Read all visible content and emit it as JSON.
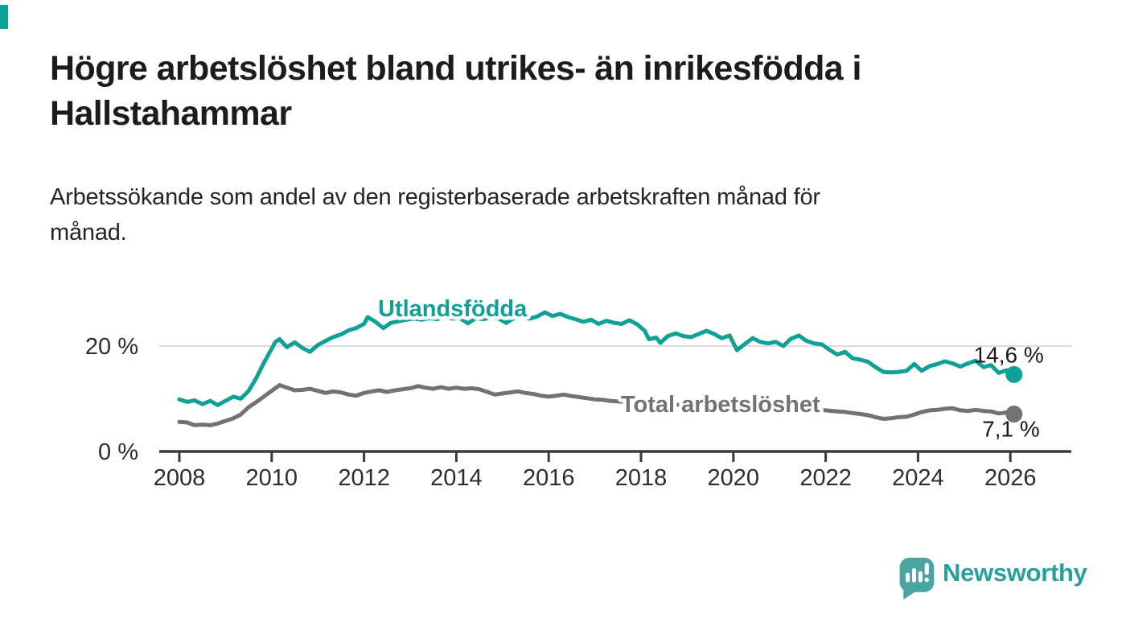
{
  "accent_color": "#0FA196",
  "header": {
    "title": "Högre arbetslöshet bland utrikes- än inrikesfödda i Hallstahammar",
    "subtitle": "Arbetssökande som andel av den registerbaserade arbetskraften månad för månad."
  },
  "chart_data": {
    "type": "line",
    "title": "Högre arbetslöshet bland utrikes- än inrikesfödda i Hallstahammar",
    "subtitle": "Arbetssökande som andel av den registerbaserade arbetskraften månad för månad.",
    "x_axis": {
      "unit": "year",
      "range": [
        2007.55,
        2027.3
      ],
      "tick_values": [
        2008,
        2010,
        2012,
        2014,
        2016,
        2018,
        2020,
        2022,
        2024,
        2026
      ],
      "tick_labels": [
        "2008",
        "2010",
        "2012",
        "2014",
        "2016",
        "2018",
        "2020",
        "2022",
        "2024",
        "2026"
      ]
    },
    "y_axis": {
      "unit": "%",
      "range": [
        0,
        28
      ],
      "ticks": [
        {
          "value": 0,
          "label": "0 %"
        },
        {
          "value": 20,
          "label": "20 %"
        }
      ],
      "gridline_at": 20
    },
    "legend_position": "inline-labels",
    "grid": "single-horizontal",
    "series": [
      {
        "name": "Utlandsfödda",
        "color": "#0FA196",
        "end_label": "14,6 %",
        "end_value": 14.6,
        "points": [
          [
            2008.0,
            9.9
          ],
          [
            2008.17,
            9.4
          ],
          [
            2008.33,
            9.7
          ],
          [
            2008.5,
            9.0
          ],
          [
            2008.67,
            9.6
          ],
          [
            2008.83,
            8.8
          ],
          [
            2009.0,
            9.6
          ],
          [
            2009.17,
            10.4
          ],
          [
            2009.33,
            10.0
          ],
          [
            2009.5,
            11.5
          ],
          [
            2009.67,
            14.0
          ],
          [
            2009.83,
            16.8
          ],
          [
            2010.0,
            19.5
          ],
          [
            2010.08,
            20.8
          ],
          [
            2010.17,
            21.3
          ],
          [
            2010.33,
            19.8
          ],
          [
            2010.5,
            20.7
          ],
          [
            2010.67,
            19.6
          ],
          [
            2010.83,
            18.9
          ],
          [
            2011.0,
            20.2
          ],
          [
            2011.17,
            21.0
          ],
          [
            2011.33,
            21.7
          ],
          [
            2011.5,
            22.2
          ],
          [
            2011.67,
            23.0
          ],
          [
            2011.83,
            23.4
          ],
          [
            2012.0,
            24.2
          ],
          [
            2012.08,
            25.5
          ],
          [
            2012.25,
            24.6
          ],
          [
            2012.42,
            23.4
          ],
          [
            2012.58,
            24.4
          ],
          [
            2012.75,
            24.7
          ],
          [
            2012.92,
            25.0
          ],
          [
            2013.08,
            25.2
          ],
          [
            2013.25,
            25.0
          ],
          [
            2013.42,
            25.3
          ],
          [
            2013.58,
            25.1
          ],
          [
            2013.75,
            25.4
          ],
          [
            2013.92,
            25.2
          ],
          [
            2014.08,
            25.3
          ],
          [
            2014.25,
            24.3
          ],
          [
            2014.42,
            25.3
          ],
          [
            2014.58,
            25.1
          ],
          [
            2014.75,
            25.4
          ],
          [
            2014.92,
            25.2
          ],
          [
            2015.08,
            24.4
          ],
          [
            2015.25,
            25.3
          ],
          [
            2015.42,
            25.5
          ],
          [
            2015.58,
            25.2
          ],
          [
            2015.75,
            25.6
          ],
          [
            2015.92,
            26.4
          ],
          [
            2016.08,
            25.7
          ],
          [
            2016.25,
            26.1
          ],
          [
            2016.42,
            25.5
          ],
          [
            2016.58,
            25.1
          ],
          [
            2016.75,
            24.6
          ],
          [
            2016.92,
            25.0
          ],
          [
            2017.08,
            24.2
          ],
          [
            2017.25,
            24.8
          ],
          [
            2017.42,
            24.4
          ],
          [
            2017.58,
            24.2
          ],
          [
            2017.75,
            24.9
          ],
          [
            2017.92,
            24.1
          ],
          [
            2018.08,
            22.9
          ],
          [
            2018.17,
            21.3
          ],
          [
            2018.33,
            21.6
          ],
          [
            2018.42,
            20.6
          ],
          [
            2018.58,
            21.9
          ],
          [
            2018.75,
            22.4
          ],
          [
            2018.92,
            21.9
          ],
          [
            2019.08,
            21.7
          ],
          [
            2019.25,
            22.3
          ],
          [
            2019.42,
            22.9
          ],
          [
            2019.58,
            22.3
          ],
          [
            2019.75,
            21.5
          ],
          [
            2019.92,
            22.0
          ],
          [
            2020.08,
            19.2
          ],
          [
            2020.25,
            20.4
          ],
          [
            2020.42,
            21.5
          ],
          [
            2020.58,
            20.8
          ],
          [
            2020.75,
            20.5
          ],
          [
            2020.92,
            20.8
          ],
          [
            2021.08,
            20.0
          ],
          [
            2021.25,
            21.4
          ],
          [
            2021.42,
            22.0
          ],
          [
            2021.58,
            21.0
          ],
          [
            2021.75,
            20.5
          ],
          [
            2021.92,
            20.3
          ],
          [
            2022.08,
            19.3
          ],
          [
            2022.25,
            18.4
          ],
          [
            2022.42,
            18.9
          ],
          [
            2022.58,
            17.7
          ],
          [
            2022.75,
            17.4
          ],
          [
            2022.92,
            17.0
          ],
          [
            2023.08,
            16.0
          ],
          [
            2023.25,
            15.1
          ],
          [
            2023.42,
            15.0
          ],
          [
            2023.58,
            15.1
          ],
          [
            2023.75,
            15.3
          ],
          [
            2023.92,
            16.6
          ],
          [
            2024.08,
            15.3
          ],
          [
            2024.25,
            16.2
          ],
          [
            2024.42,
            16.6
          ],
          [
            2024.58,
            17.1
          ],
          [
            2024.75,
            16.7
          ],
          [
            2024.92,
            16.1
          ],
          [
            2025.08,
            16.7
          ],
          [
            2025.25,
            17.2
          ],
          [
            2025.42,
            16.0
          ],
          [
            2025.58,
            16.4
          ],
          [
            2025.75,
            14.9
          ],
          [
            2025.92,
            15.4
          ],
          [
            2026.08,
            14.6
          ]
        ]
      },
      {
        "name": "Total arbetslöshet",
        "color": "#717176",
        "end_label": "7,1 %",
        "end_value": 7.1,
        "points": [
          [
            2008.0,
            5.6
          ],
          [
            2008.17,
            5.5
          ],
          [
            2008.33,
            5.0
          ],
          [
            2008.5,
            5.1
          ],
          [
            2008.67,
            5.0
          ],
          [
            2008.83,
            5.3
          ],
          [
            2009.0,
            5.8
          ],
          [
            2009.17,
            6.3
          ],
          [
            2009.33,
            7.0
          ],
          [
            2009.5,
            8.4
          ],
          [
            2009.67,
            9.4
          ],
          [
            2009.83,
            10.4
          ],
          [
            2010.0,
            11.5
          ],
          [
            2010.17,
            12.6
          ],
          [
            2010.33,
            12.1
          ],
          [
            2010.5,
            11.6
          ],
          [
            2010.67,
            11.7
          ],
          [
            2010.83,
            11.9
          ],
          [
            2011.0,
            11.5
          ],
          [
            2011.17,
            11.1
          ],
          [
            2011.33,
            11.4
          ],
          [
            2011.5,
            11.2
          ],
          [
            2011.67,
            10.8
          ],
          [
            2011.83,
            10.6
          ],
          [
            2012.0,
            11.1
          ],
          [
            2012.17,
            11.4
          ],
          [
            2012.33,
            11.6
          ],
          [
            2012.5,
            11.3
          ],
          [
            2012.67,
            11.6
          ],
          [
            2012.83,
            11.8
          ],
          [
            2013.0,
            12.0
          ],
          [
            2013.17,
            12.4
          ],
          [
            2013.33,
            12.1
          ],
          [
            2013.5,
            11.9
          ],
          [
            2013.67,
            12.2
          ],
          [
            2013.83,
            11.9
          ],
          [
            2014.0,
            12.1
          ],
          [
            2014.17,
            11.9
          ],
          [
            2014.33,
            12.0
          ],
          [
            2014.5,
            11.8
          ],
          [
            2014.67,
            11.3
          ],
          [
            2014.83,
            10.8
          ],
          [
            2015.0,
            11.0
          ],
          [
            2015.17,
            11.2
          ],
          [
            2015.33,
            11.4
          ],
          [
            2015.5,
            11.1
          ],
          [
            2015.67,
            10.9
          ],
          [
            2015.83,
            10.6
          ],
          [
            2016.0,
            10.4
          ],
          [
            2016.17,
            10.6
          ],
          [
            2016.33,
            10.8
          ],
          [
            2016.5,
            10.5
          ],
          [
            2016.67,
            10.3
          ],
          [
            2016.83,
            10.1
          ],
          [
            2017.0,
            9.9
          ],
          [
            2017.17,
            9.8
          ],
          [
            2017.33,
            9.6
          ],
          [
            2017.5,
            9.5
          ],
          [
            2017.67,
            9.4
          ],
          [
            2017.83,
            9.3
          ],
          [
            2018.0,
            9.2
          ],
          [
            2018.25,
            9.0
          ],
          [
            2018.5,
            9.1
          ],
          [
            2018.75,
            8.9
          ],
          [
            2019.0,
            8.8
          ],
          [
            2019.25,
            8.9
          ],
          [
            2019.5,
            8.7
          ],
          [
            2019.75,
            8.6
          ],
          [
            2020.0,
            8.5
          ],
          [
            2020.25,
            9.0
          ],
          [
            2020.5,
            9.2
          ],
          [
            2020.75,
            8.9
          ],
          [
            2021.0,
            8.7
          ],
          [
            2021.25,
            8.5
          ],
          [
            2021.5,
            8.2
          ],
          [
            2021.75,
            8.0
          ],
          [
            2022.0,
            7.8
          ],
          [
            2022.25,
            7.6
          ],
          [
            2022.42,
            7.5
          ],
          [
            2022.58,
            7.3
          ],
          [
            2022.75,
            7.1
          ],
          [
            2022.92,
            6.9
          ],
          [
            2023.08,
            6.5
          ],
          [
            2023.25,
            6.2
          ],
          [
            2023.42,
            6.3
          ],
          [
            2023.58,
            6.5
          ],
          [
            2023.75,
            6.6
          ],
          [
            2023.92,
            7.0
          ],
          [
            2024.08,
            7.5
          ],
          [
            2024.25,
            7.8
          ],
          [
            2024.42,
            7.9
          ],
          [
            2024.58,
            8.1
          ],
          [
            2024.75,
            8.2
          ],
          [
            2024.92,
            7.8
          ],
          [
            2025.08,
            7.7
          ],
          [
            2025.25,
            7.9
          ],
          [
            2025.42,
            7.7
          ],
          [
            2025.58,
            7.6
          ],
          [
            2025.75,
            7.2
          ],
          [
            2025.92,
            7.4
          ],
          [
            2026.08,
            7.1
          ]
        ]
      }
    ]
  },
  "footer": {
    "brand": "Newsworthy",
    "logo_icon": "newsworthy-speech-bubble-chart-icon"
  },
  "colors": {
    "accent": "#0FA196",
    "series_foreign_born": "#0FA196",
    "series_total": "#717176",
    "axis": "#3a3a3c",
    "gridline": "#dddddd",
    "title_text": "#1c1c1a",
    "value_label_text": "#1a1a1a",
    "logo_icon": "#4aa5a1",
    "logo_text": "#27a09b"
  }
}
